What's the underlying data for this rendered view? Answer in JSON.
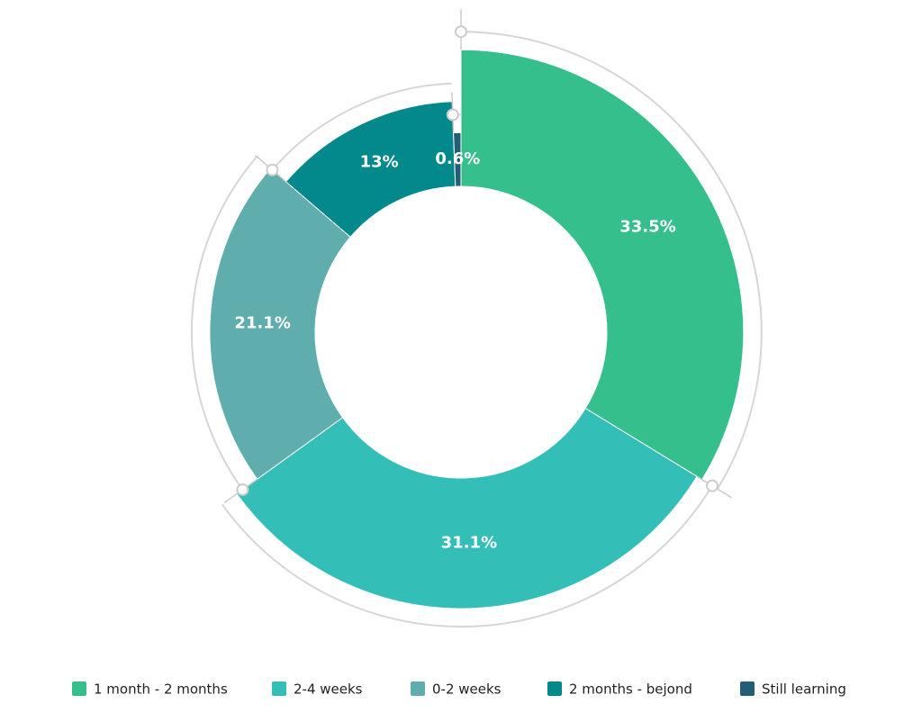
{
  "chart_data": {
    "type": "donut",
    "categories": [
      "1 month - 2 months",
      "2-4 weeks",
      "0-2 weeks",
      "2 months - bejond",
      "Still learning"
    ],
    "values": [
      33.5,
      31.1,
      21.1,
      13,
      0.6
    ],
    "value_labels": [
      "33.5%",
      "31.1%",
      "21.1%",
      "13%",
      "0.6%"
    ],
    "colors": [
      "#34bf8c",
      "#33bfb8",
      "#5fadac",
      "#03898c",
      "#245e74"
    ]
  }
}
